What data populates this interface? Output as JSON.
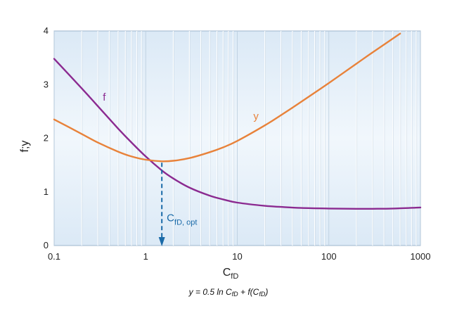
{
  "chart_data": {
    "type": "line",
    "xscale": "log",
    "xlim": [
      0.1,
      1000
    ],
    "ylim": [
      0,
      4
    ],
    "xlabel": "C",
    "xlabel_sub": "fD",
    "ylabel": "f;y",
    "x_ticks": [
      {
        "value": 0.1,
        "label": "0.1"
      },
      {
        "value": 1,
        "label": "1"
      },
      {
        "value": 10,
        "label": "10"
      },
      {
        "value": 100,
        "label": "100"
      },
      {
        "value": 1000,
        "label": "1000"
      }
    ],
    "y_ticks": [
      {
        "value": 0,
        "label": "0"
      },
      {
        "value": 1,
        "label": "1"
      },
      {
        "value": 2,
        "label": "2"
      },
      {
        "value": 3,
        "label": "3"
      },
      {
        "value": 4,
        "label": "4"
      }
    ],
    "grid": "vertical-minor",
    "series": [
      {
        "name": "f",
        "color": "#8b2a90",
        "x": [
          0.1,
          0.2,
          0.3,
          0.5,
          0.7,
          1,
          1.5,
          2,
          3,
          5,
          7,
          10,
          20,
          30,
          50,
          100,
          200,
          300,
          500,
          1000
        ],
        "y": [
          3.48,
          2.93,
          2.6,
          2.18,
          1.92,
          1.66,
          1.4,
          1.25,
          1.08,
          0.93,
          0.86,
          0.8,
          0.74,
          0.72,
          0.7,
          0.69,
          0.685,
          0.685,
          0.69,
          0.71
        ]
      },
      {
        "name": "y",
        "color": "#e8823a",
        "x": [
          0.1,
          0.2,
          0.3,
          0.5,
          0.7,
          1,
          1.5,
          2,
          3,
          5,
          7,
          10,
          20,
          30,
          50,
          100,
          200,
          300,
          600
        ],
        "y": [
          2.35,
          2.08,
          1.92,
          1.75,
          1.66,
          1.6,
          1.57,
          1.58,
          1.63,
          1.74,
          1.83,
          1.95,
          2.24,
          2.43,
          2.68,
          3.03,
          3.39,
          3.6,
          3.95
        ]
      }
    ],
    "annotations": {
      "optimum": {
        "x": 1.5,
        "y": 1.57,
        "label": "C",
        "label_sub": "fD, opt",
        "color": "#1a6aa8"
      },
      "f_label": {
        "text": "f",
        "x": 0.34,
        "y": 2.7
      },
      "y_label": {
        "text": "y",
        "x": 15,
        "y": 2.35
      }
    }
  },
  "formula": "y = 0.5 ln C"
}
